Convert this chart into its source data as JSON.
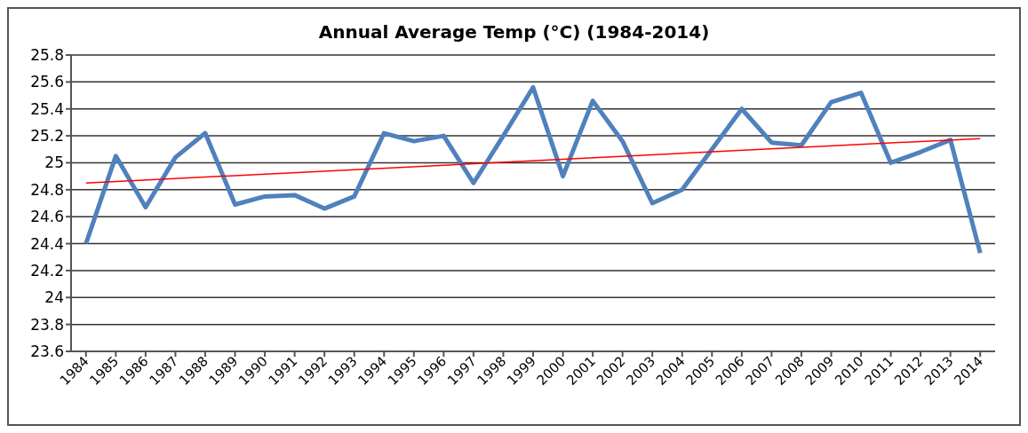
{
  "chart_data": {
    "type": "line",
    "title": "Annual Average Temp (°C) (1984-2014)",
    "categories": [
      "1984",
      "1985",
      "1986",
      "1987",
      "1988",
      "1989",
      "1990",
      "1991",
      "1992",
      "1993",
      "1994",
      "1995",
      "1996",
      "1997",
      "1998",
      "1999",
      "2000",
      "2001",
      "2002",
      "2003",
      "2004",
      "2005",
      "2006",
      "2007",
      "2008",
      "2009",
      "2010",
      "2011",
      "2012",
      "2013",
      "2014"
    ],
    "series": [
      {
        "color": "#4f81bd",
        "values": [
          24.4,
          25.05,
          24.67,
          25.04,
          25.22,
          24.69,
          24.75,
          24.76,
          24.66,
          24.75,
          25.22,
          25.16,
          25.2,
          24.85,
          25.2,
          25.56,
          24.9,
          25.46,
          25.16,
          24.7,
          24.8,
          25.1,
          25.4,
          25.15,
          25.13,
          25.45,
          25.52,
          25.0,
          25.08,
          25.17,
          24.33
        ]
      },
      {
        "type": "line",
        "color": "#ff0000",
        "values": [
          24.85,
          null,
          null,
          null,
          null,
          null,
          null,
          null,
          null,
          null,
          null,
          null,
          null,
          null,
          null,
          null,
          null,
          null,
          null,
          null,
          null,
          null,
          null,
          null,
          null,
          null,
          null,
          null,
          null,
          null,
          25.18
        ]
      }
    ],
    "ylim": [
      23.6,
      25.8
    ],
    "yticks": [
      23.6,
      23.8,
      24,
      24.2,
      24.4,
      24.6,
      24.8,
      25,
      25.2,
      25.4,
      25.6,
      25.8
    ],
    "grid": "y",
    "marker": "none"
  }
}
